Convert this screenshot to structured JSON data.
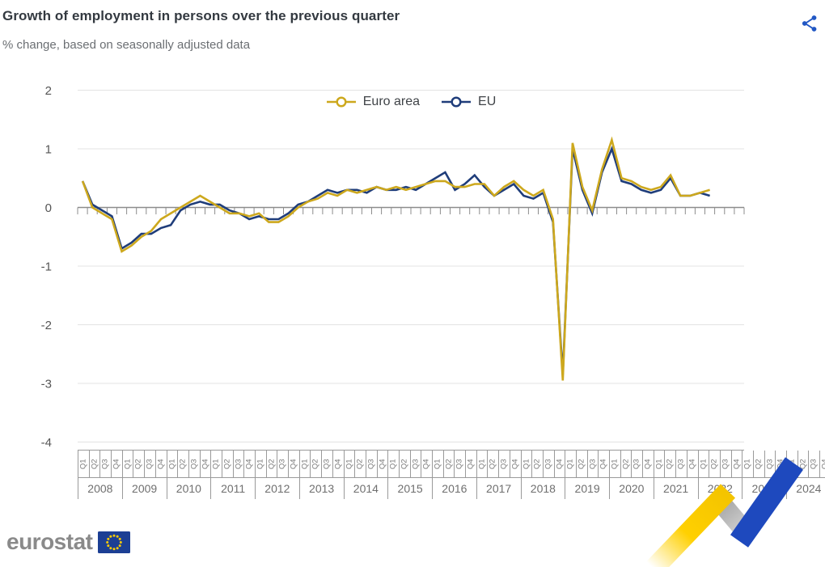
{
  "header": {
    "title": "Growth of employment in persons over the previous quarter",
    "subtitle": "% change, based on seasonally adjusted data"
  },
  "legend": [
    {
      "label": "Euro area",
      "color": "#CDA81D"
    },
    {
      "label": "EU",
      "color": "#1F3D7A"
    }
  ],
  "chart_data": {
    "type": "line",
    "title": "Growth of employment in persons over the previous quarter",
    "subtitle": "% change, based on seasonally adjusted data",
    "ylabel": "% change",
    "grid": true,
    "legend_position": "top-center",
    "x": [
      "2008-Q1",
      "2008-Q2",
      "2008-Q3",
      "2008-Q4",
      "2009-Q1",
      "2009-Q2",
      "2009-Q3",
      "2009-Q4",
      "2010-Q1",
      "2010-Q2",
      "2010-Q3",
      "2010-Q4",
      "2011-Q1",
      "2011-Q2",
      "2011-Q3",
      "2011-Q4",
      "2012-Q1",
      "2012-Q2",
      "2012-Q3",
      "2012-Q4",
      "2013-Q1",
      "2013-Q2",
      "2013-Q3",
      "2013-Q4",
      "2014-Q1",
      "2014-Q2",
      "2014-Q3",
      "2014-Q4",
      "2015-Q1",
      "2015-Q2",
      "2015-Q3",
      "2015-Q4",
      "2016-Q1",
      "2016-Q2",
      "2016-Q3",
      "2016-Q4",
      "2017-Q1",
      "2017-Q2",
      "2017-Q3",
      "2017-Q4",
      "2018-Q1",
      "2018-Q2",
      "2018-Q3",
      "2018-Q4",
      "2019-Q1",
      "2019-Q2",
      "2019-Q3",
      "2019-Q4",
      "2020-Q1",
      "2020-Q2",
      "2020-Q3",
      "2020-Q4",
      "2021-Q1",
      "2021-Q2",
      "2021-Q3",
      "2021-Q4",
      "2022-Q1",
      "2022-Q2",
      "2022-Q3",
      "2022-Q4",
      "2023-Q1",
      "2023-Q2",
      "2023-Q3",
      "2023-Q4",
      "2024-Q1"
    ],
    "series": [
      {
        "name": "Euro area",
        "color": "#CDA81D",
        "values": [
          0.45,
          0.0,
          -0.1,
          -0.2,
          -0.75,
          -0.65,
          -0.5,
          -0.4,
          -0.2,
          -0.1,
          0.0,
          0.1,
          0.2,
          0.1,
          0.0,
          -0.1,
          -0.1,
          -0.15,
          -0.1,
          -0.25,
          -0.25,
          -0.15,
          0.0,
          0.1,
          0.15,
          0.25,
          0.2,
          0.3,
          0.25,
          0.3,
          0.35,
          0.3,
          0.35,
          0.3,
          0.35,
          0.4,
          0.45,
          0.45,
          0.35,
          0.35,
          0.4,
          0.4,
          0.2,
          0.35,
          0.45,
          0.3,
          0.2,
          0.3,
          -0.2,
          -2.95,
          1.1,
          0.35,
          -0.05,
          0.65,
          1.15,
          0.5,
          0.45,
          0.35,
          0.3,
          0.35,
          0.55,
          0.2,
          0.2,
          0.25,
          0.3
        ]
      },
      {
        "name": "EU",
        "color": "#1F3D7A",
        "values": [
          0.45,
          0.05,
          -0.05,
          -0.15,
          -0.7,
          -0.6,
          -0.45,
          -0.45,
          -0.35,
          -0.3,
          -0.05,
          0.05,
          0.1,
          0.05,
          0.05,
          -0.05,
          -0.1,
          -0.2,
          -0.15,
          -0.2,
          -0.2,
          -0.1,
          0.05,
          0.1,
          0.2,
          0.3,
          0.25,
          0.3,
          0.3,
          0.25,
          0.35,
          0.3,
          0.3,
          0.35,
          0.3,
          0.4,
          0.5,
          0.6,
          0.3,
          0.4,
          0.55,
          0.35,
          0.2,
          0.3,
          0.4,
          0.2,
          0.15,
          0.25,
          -0.25,
          -2.85,
          1.0,
          0.3,
          -0.1,
          0.6,
          1.0,
          0.45,
          0.4,
          0.3,
          0.25,
          0.3,
          0.5,
          0.2,
          0.2,
          0.25,
          0.2
        ]
      }
    ],
    "x_axis": {
      "years": [
        "2008",
        "2009",
        "2010",
        "2011",
        "2012",
        "2013",
        "2014",
        "2015",
        "2016",
        "2017",
        "2018",
        "2019",
        "2020",
        "2021",
        "2022",
        "2023",
        "2024"
      ],
      "quarters": [
        "Q1",
        "Q2",
        "Q3",
        "Q4"
      ],
      "total_categories": 68
    },
    "y_axis": {
      "ticks": [
        2,
        1,
        0,
        -1,
        -2,
        -3,
        -4
      ],
      "range": [
        -4,
        2
      ]
    },
    "colors": {
      "grid": "#E3E3E3",
      "zero_axis": "#8C8C8C",
      "tick_label": "#555555"
    }
  },
  "footer": {
    "logo_text": "eurostat",
    "flag_blue": "#1C3F94",
    "star_yellow": "#FFCC00",
    "decor_yellow": "#FFD000",
    "decor_gray": "#BDBDBD",
    "decor_blue": "#1E49BE"
  },
  "icons": {
    "share": "share-icon"
  },
  "share_color": "#2157C4"
}
